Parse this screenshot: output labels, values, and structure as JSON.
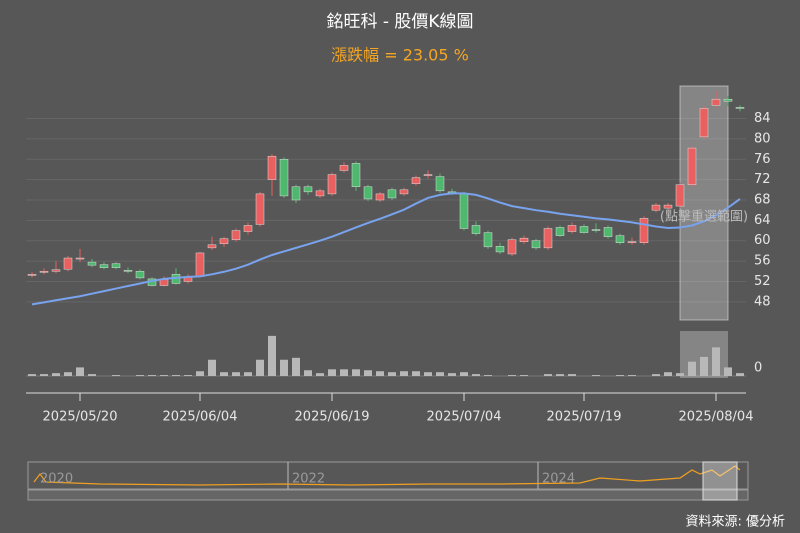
{
  "chart_data": {
    "type": "candlestick",
    "title": "銘旺科 - 股價K線圖",
    "subtitle": "漲跌幅 = 23.05 %",
    "categories": [
      null,
      null,
      null,
      null,
      "2025/05/20",
      null,
      null,
      null,
      null,
      null,
      null,
      null,
      null,
      null,
      "2025/06/04",
      null,
      null,
      null,
      null,
      null,
      null,
      null,
      null,
      null,
      null,
      "2025/06/19",
      null,
      null,
      null,
      null,
      null,
      null,
      null,
      null,
      null,
      null,
      "2025/07/04",
      null,
      null,
      null,
      null,
      null,
      null,
      null,
      null,
      null,
      "2025/07/19",
      null,
      null,
      null,
      null,
      null,
      null,
      null,
      null,
      null,
      null,
      "2025/08/04",
      null,
      null
    ],
    "open": [
      53.2,
      53.8,
      54.0,
      54.4,
      56.4,
      55.8,
      55.3,
      55.5,
      54.2,
      54.0,
      52.5,
      51.2,
      53.4,
      52.0,
      53.0,
      58.6,
      59.4,
      60.2,
      61.8,
      63.2,
      72.0,
      76.0,
      70.6,
      70.6,
      68.8,
      69.2,
      73.8,
      75.2,
      70.6,
      68.0,
      70.0,
      69.2,
      71.2,
      72.8,
      72.6,
      69.6,
      69.2,
      63.0,
      61.6,
      58.9,
      57.4,
      59.8,
      60.0,
      58.6,
      62.6,
      61.8,
      62.8,
      62.2,
      62.6,
      61.0,
      59.6,
      59.6,
      66.0,
      66.4,
      66.8,
      71.0,
      80.4,
      86.6,
      87.8,
      86.2
    ],
    "high": [
      53.8,
      54.6,
      56.0,
      57.0,
      58.4,
      56.4,
      55.8,
      55.8,
      54.8,
      54.4,
      52.8,
      53.0,
      54.6,
      53.4,
      57.8,
      60.8,
      60.8,
      62.4,
      63.6,
      69.6,
      77.0,
      76.4,
      71.0,
      71.0,
      70.2,
      73.4,
      75.4,
      75.6,
      71.0,
      69.6,
      70.4,
      70.4,
      72.8,
      73.8,
      73.2,
      70.2,
      69.6,
      63.8,
      62.0,
      59.6,
      60.6,
      61.0,
      60.4,
      62.8,
      63.0,
      63.6,
      63.2,
      63.4,
      63.0,
      61.4,
      60.6,
      64.8,
      67.4,
      67.4,
      71.4,
      78.6,
      86.4,
      89.4,
      88.4,
      86.6
    ],
    "low": [
      52.8,
      53.4,
      53.6,
      54.0,
      55.8,
      54.8,
      54.4,
      54.4,
      53.6,
      52.4,
      51.0,
      51.0,
      51.4,
      51.6,
      52.8,
      58.2,
      58.8,
      59.8,
      61.2,
      62.8,
      68.8,
      68.4,
      67.4,
      69.0,
      68.4,
      68.8,
      73.4,
      69.8,
      67.8,
      67.6,
      68.0,
      68.8,
      70.8,
      72.2,
      69.4,
      69.0,
      62.0,
      61.0,
      58.4,
      57.4,
      57.0,
      59.4,
      58.2,
      58.2,
      60.8,
      61.4,
      61.4,
      61.6,
      60.4,
      59.2,
      59.2,
      59.2,
      65.6,
      66.0,
      66.4,
      70.6,
      80.0,
      86.0,
      86.4,
      85.4
    ],
    "close": [
      53.4,
      54.0,
      54.3,
      56.6,
      56.6,
      55.2,
      54.7,
      54.7,
      54.0,
      52.7,
      51.2,
      52.4,
      51.6,
      52.9,
      57.6,
      59.2,
      60.4,
      62.0,
      63.0,
      69.2,
      76.6,
      68.8,
      68.0,
      69.6,
      69.8,
      73.0,
      74.8,
      70.6,
      68.2,
      69.2,
      68.4,
      70.0,
      72.4,
      73.0,
      69.8,
      69.4,
      62.4,
      61.4,
      58.8,
      57.8,
      60.2,
      60.5,
      58.6,
      62.4,
      61.0,
      63.0,
      61.6,
      62.0,
      60.8,
      59.6,
      59.8,
      64.4,
      67.0,
      67.0,
      71.0,
      78.2,
      86.0,
      87.8,
      87.4,
      86.0
    ],
    "up_color": "#e8605f",
    "down_color": "#4fb86f",
    "ma": {
      "color": "#79a3ee",
      "values": [
        47.5,
        47.9,
        48.3,
        48.7,
        49.1,
        49.6,
        50.1,
        50.6,
        51.1,
        51.6,
        52.1,
        52.5,
        52.7,
        52.9,
        53.0,
        53.4,
        53.9,
        54.5,
        55.3,
        56.3,
        57.2,
        57.9,
        58.6,
        59.3,
        60.0,
        60.8,
        61.7,
        62.6,
        63.5,
        64.3,
        65.2,
        66.1,
        67.3,
        68.4,
        69.0,
        69.3,
        69.3,
        69.0,
        68.3,
        67.5,
        66.8,
        66.4,
        66.0,
        65.7,
        65.3,
        65.0,
        64.7,
        64.4,
        64.2,
        63.9,
        63.6,
        63.2,
        62.8,
        62.5,
        62.6,
        63.0,
        63.8,
        65.0,
        66.5,
        68.2
      ]
    },
    "volume": {
      "color": "#b8b8b8",
      "values": [
        2,
        2,
        3,
        4,
        9,
        2,
        0,
        1,
        0,
        1,
        1,
        1,
        1,
        1,
        5,
        17,
        4,
        4,
        4,
        17,
        42,
        17,
        19,
        6,
        3,
        7,
        7,
        7,
        6,
        5,
        4,
        5,
        5,
        4,
        4,
        3,
        4,
        2,
        1,
        0,
        1,
        1,
        0,
        2,
        2,
        2,
        0,
        1,
        0,
        1,
        1,
        0,
        2,
        4,
        3,
        15,
        20,
        30,
        9,
        3
      ],
      "ylim": [
        0,
        45
      ],
      "yticks": [
        0
      ]
    },
    "ylim": [
      46,
      90
    ],
    "yticks": [
      48,
      52,
      56,
      60,
      64,
      68,
      72,
      76,
      80,
      84
    ],
    "grid": true
  },
  "hint": "(點擊重選範圍)",
  "navigator": {
    "labels": [
      "2020",
      "2022",
      "2024"
    ]
  },
  "source": "資料來源: 優分析"
}
